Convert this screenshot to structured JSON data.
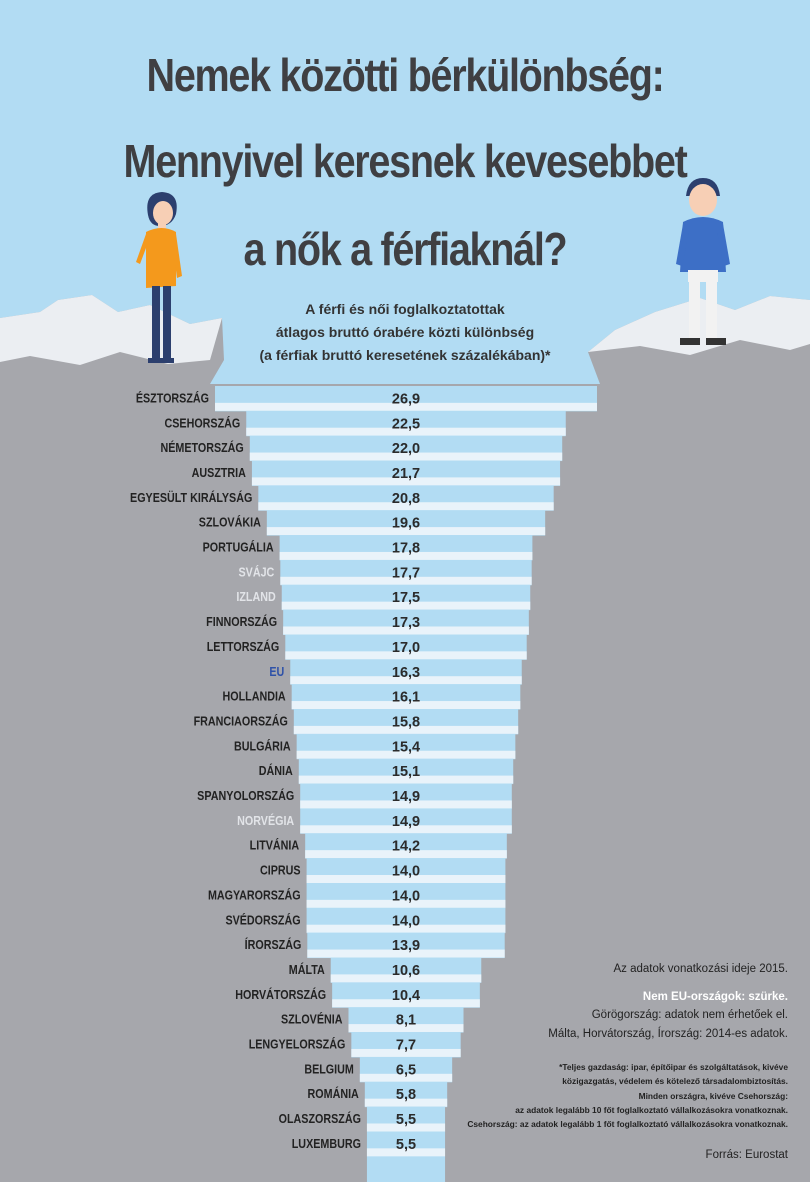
{
  "title_lines": [
    "Nemek közötti bérkülönbség:",
    "Mennyivel keresnek kevesebbet",
    "a nők a férfiaknál?"
  ],
  "subtitle_lines": [
    "A férfi és női foglalkoztatottak",
    "átlagos bruttó órabére közti különbség",
    "(a férfiak bruttó keresetének százalékában)*"
  ],
  "notes": {
    "date": "Az adatok vonatkozási ideje 2015.",
    "non_eu": "Nem EU-országok: szürke.",
    "greece": "Görögország: adatok nem érhetőek el.",
    "years": "Málta, Horvátország, Írország: 2014-es adatok.",
    "footnote_lines": [
      "*Teljes gazdaság: ipar, építőipar és szolgáltatások, kivéve",
      "közigazgatás, védelem és kötelező társadalombiztosítás.",
      "Minden országra, kivéve Csehország:",
      "az adatok legalább 10 főt foglalkoztató vállalkozásokra vonatkoznak.",
      "Csehország: az adatok legalább 1 főt foglalkoztató vállalkozásokra vonatkoznak."
    ],
    "source": "Forrás: Eurostat"
  },
  "colors": {
    "sky": "#b2dcf3",
    "rock": "#a6a7ac",
    "step": "#e9f3fa",
    "eu_label": "#2f52a8",
    "non_eu_label": "#e2e4e8",
    "label": "#222222",
    "woman_dress": "#f4991c",
    "man_sweater": "#3d6fc6"
  },
  "chart_data": {
    "type": "bar",
    "orientation": "horizontal-centered",
    "series": [
      {
        "values": [
          26.9,
          22.5,
          22.0,
          21.7,
          20.8,
          19.6,
          17.8,
          17.7,
          17.5,
          17.3,
          17.0,
          16.3,
          16.1,
          15.8,
          15.4,
          15.1,
          14.9,
          14.9,
          14.2,
          14.0,
          14.0,
          14.0,
          13.9,
          10.6,
          10.4,
          8.1,
          7.7,
          6.5,
          5.8,
          5.5,
          5.5
        ]
      }
    ],
    "categories": [
      "ÉSZTORSZÁG",
      "CSEHORSZÁG",
      "NÉMETORSZÁG",
      "AUSZTRIA",
      "EGYESÜLT KIRÁLYSÁG",
      "SZLOVÁKIA",
      "PORTUGÁLIA",
      "SVÁJC",
      "IZLAND",
      "FINNORSZÁG",
      "LETTORSZÁG",
      "EU",
      "HOLLANDIA",
      "FRANCIAORSZÁG",
      "BULGÁRIA",
      "DÁNIA",
      "SPANYOLORSZÁG",
      "NORVÉGIA",
      "LITVÁNIA",
      "CIPRUS",
      "MAGYARORSZÁG",
      "SVÉDORSZÁG",
      "ÍRORSZÁG",
      "MÁLTA",
      "HORVÁTORSZÁG",
      "SZLOVÉNIA",
      "LENGYELORSZÁG",
      "BELGIUM",
      "ROMÁNIA",
      "OLASZORSZÁG",
      "LUXEMBURG"
    ],
    "value_labels": [
      "26,9",
      "22,5",
      "22,0",
      "21,7",
      "20,8",
      "19,6",
      "17,8",
      "17,7",
      "17,5",
      "17,3",
      "17,0",
      "16,3",
      "16,1",
      "15,8",
      "15,4",
      "15,1",
      "14,9",
      "14,9",
      "14,2",
      "14,0",
      "14,0",
      "14,0",
      "13,9",
      "10,6",
      "10,4",
      "8,1",
      "7,7",
      "6,5",
      "5,8",
      "5,5",
      "5,5"
    ],
    "category_group": [
      "eu",
      "eu",
      "eu",
      "eu",
      "eu",
      "eu",
      "eu",
      "non-eu",
      "non-eu",
      "eu",
      "eu",
      "eu-average",
      "eu",
      "eu",
      "eu",
      "eu",
      "eu",
      "non-eu",
      "eu",
      "eu",
      "eu",
      "eu",
      "eu",
      "eu",
      "eu",
      "eu",
      "eu",
      "eu",
      "eu",
      "eu",
      "eu"
    ],
    "unit": "%"
  }
}
